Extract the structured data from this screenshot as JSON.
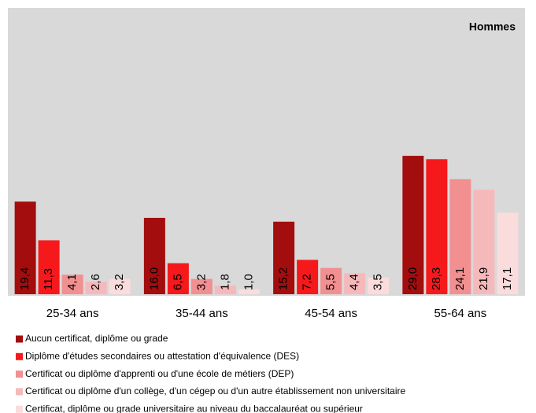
{
  "chart_data": {
    "type": "bar",
    "title": "Hommes",
    "categories": [
      "25-34 ans",
      "35-44 ans",
      "45-54 ans",
      "55-64 ans"
    ],
    "ylim": [
      0,
      60
    ],
    "series": [
      {
        "name": "Aucun certificat, diplôme ou grade",
        "color": "#a30d0d",
        "values": [
          19.4,
          16.0,
          15.2,
          29.0
        ],
        "value_labels": [
          "19,4",
          "16,0",
          "15,2",
          "29,0"
        ]
      },
      {
        "name": "Diplôme d'études secondaires ou attestation d'équivalence (DES)",
        "color": "#f5191c",
        "values": [
          11.3,
          6.5,
          7.2,
          28.3
        ],
        "value_labels": [
          "11,3",
          "6,5",
          "7,2",
          "28,3"
        ]
      },
      {
        "name": "Certificat ou diplôme d'apprenti ou d'une école de métiers (DEP)",
        "color": "#f28f91",
        "values": [
          4.1,
          3.2,
          5.5,
          24.1
        ],
        "value_labels": [
          "4,1",
          "3,2",
          "5,5",
          "24,1"
        ]
      },
      {
        "name": "Certificat ou diplôme d'un collège, d'un cégep ou d'un autre établissement non universitaire",
        "color": "#f6b9bb",
        "values": [
          2.6,
          1.8,
          4.4,
          21.9
        ],
        "value_labels": [
          "2,6",
          "1,8",
          "4,4",
          "21,9"
        ]
      },
      {
        "name": "Certificat, diplôme ou grade universitaire au niveau du baccalauréat ou supérieur",
        "color": "#fbdcdc",
        "values": [
          3.2,
          1.0,
          3.5,
          17.1
        ],
        "value_labels": [
          "3,2",
          "1,0",
          "3,5",
          "17,1"
        ]
      }
    ]
  }
}
